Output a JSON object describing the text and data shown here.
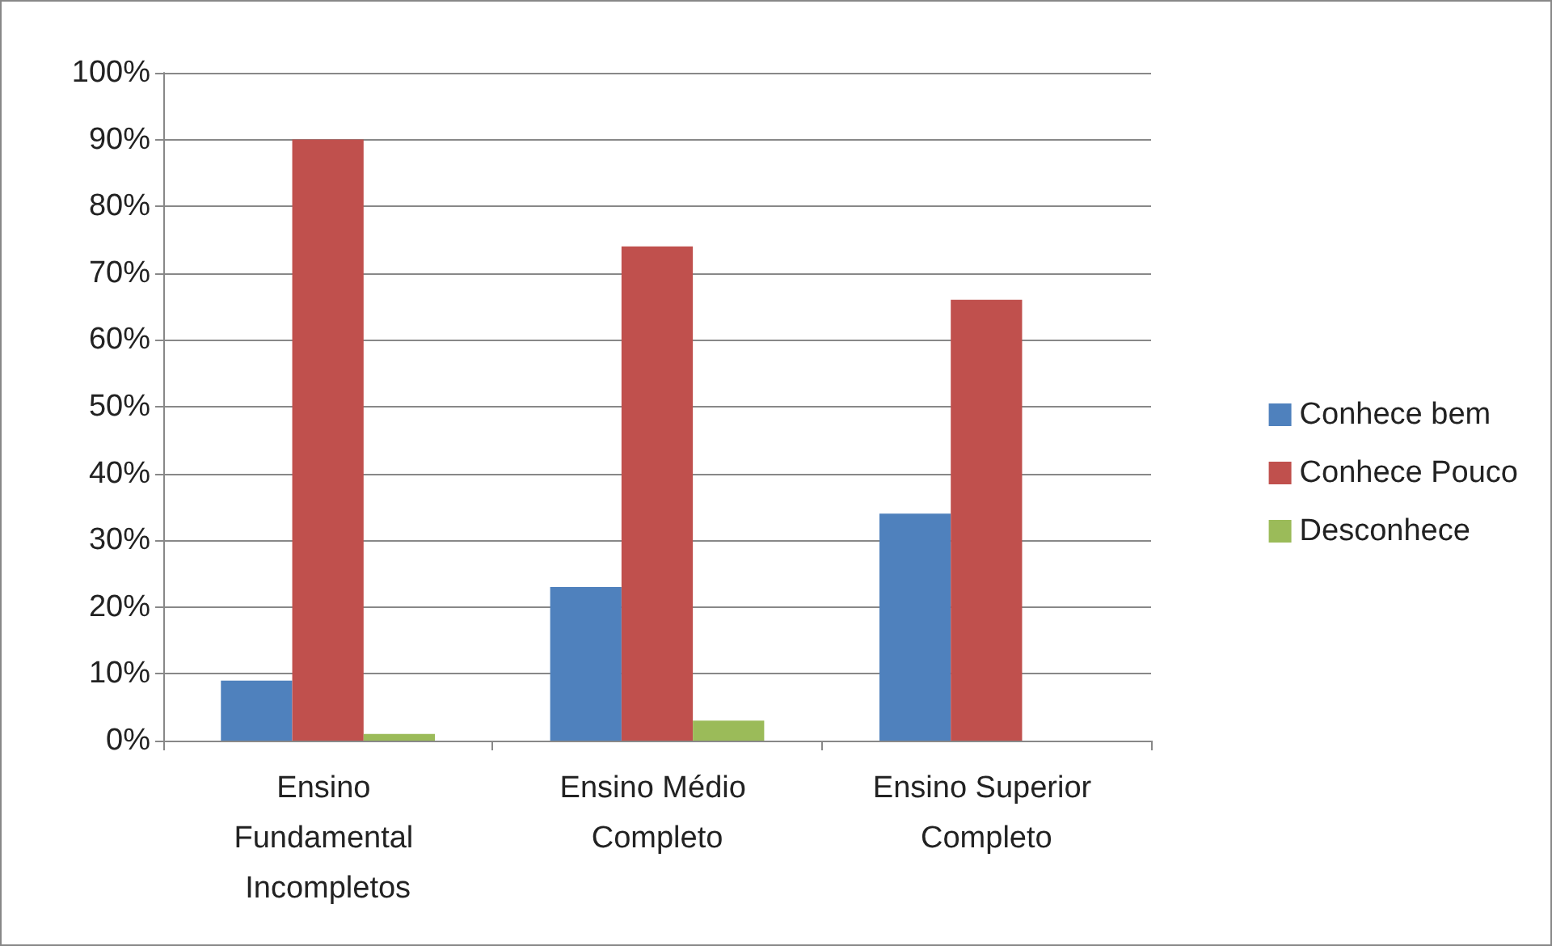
{
  "chart_data": {
    "type": "bar",
    "categories": [
      "Ensino Fundamental Incompletos",
      "Ensino Médio Completo",
      "Ensino Superior Completo"
    ],
    "series": [
      {
        "name": "Conhece bem",
        "color": "#4f81bd",
        "values": [
          9,
          23,
          34
        ]
      },
      {
        "name": "Conhece Pouco",
        "color": "#c0504d",
        "values": [
          90,
          74,
          66
        ]
      },
      {
        "name": "Desconhece",
        "color": "#9bbb59",
        "values": [
          1,
          3,
          0
        ]
      }
    ],
    "ylim": [
      0,
      100
    ],
    "yticks": [
      {
        "value": 0,
        "label": "0%"
      },
      {
        "value": 10,
        "label": "10%"
      },
      {
        "value": 20,
        "label": "20%"
      },
      {
        "value": 30,
        "label": "30%"
      },
      {
        "value": 40,
        "label": "40%"
      },
      {
        "value": 50,
        "label": "50%"
      },
      {
        "value": 60,
        "label": "60%"
      },
      {
        "value": 70,
        "label": "70%"
      },
      {
        "value": 80,
        "label": "80%"
      },
      {
        "value": 90,
        "label": "90%"
      },
      {
        "value": 100,
        "label": "100%"
      }
    ],
    "grid": "y",
    "legend": "right"
  }
}
